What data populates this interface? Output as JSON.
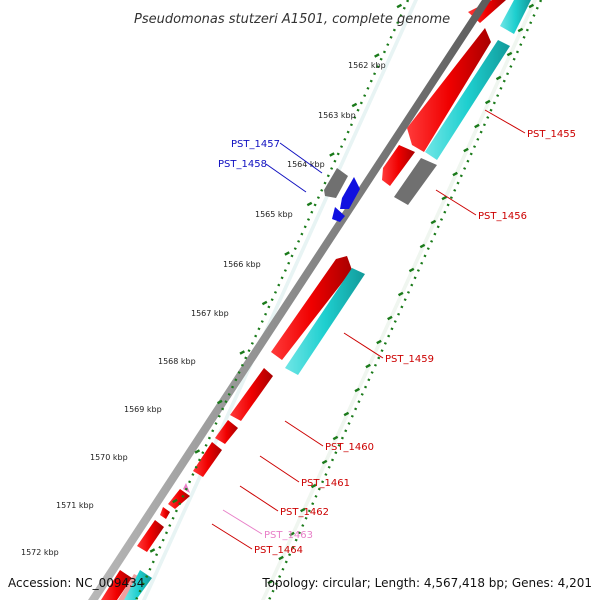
{
  "title": "Pseudomonas stutzeri A1501, complete genome",
  "accession": "Accession: NC_009434",
  "topology": "Topology: circular; Length: 4,567,418 bp; Genes: 4,201",
  "ticks": [
    "1562 kbp",
    "1563 kbp",
    "1564 kbp",
    "1565 kbp",
    "1566 kbp",
    "1567 kbp",
    "1568 kbp",
    "1569 kbp",
    "1570 kbp",
    "1571 kbp",
    "1572 kbp"
  ],
  "gene_labels": [
    "PST_1455",
    "PST_1456",
    "PST_1457",
    "PST_1458",
    "PST_1459",
    "PST_1460",
    "PST_1461",
    "PST_1462",
    "PST_1463",
    "PST_1464"
  ],
  "colors": {
    "backbone": "#8c8c8c",
    "cds_red": "#f00000",
    "cds_red_label": "#cc0000",
    "cds_cyan": "#1ecfcf",
    "gray_gene": "#707070",
    "blue_gene": "#1010e0",
    "blue_label": "#1010c0",
    "pink_gene": "#e880c8",
    "pink_label": "#e880c8",
    "tick_green": "#1a7a1a"
  }
}
